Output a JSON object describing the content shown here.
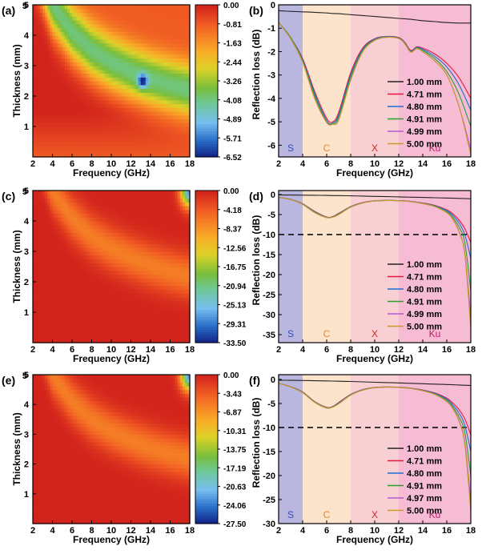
{
  "panels": [
    {
      "label": "(a)",
      "type": "contour",
      "xlabel": "Frequency (GHz)",
      "ylabel": "Thickness (mm)",
      "xticks": [
        "2",
        "4",
        "6",
        "8",
        "10",
        "12",
        "14",
        "16",
        "18"
      ],
      "yticks": [
        "1",
        "2",
        "3",
        "4",
        "5"
      ],
      "colorbar": [
        "0.00",
        "-0.81",
        "-1.63",
        "-2.44",
        "-3.26",
        "-4.08",
        "-4.89",
        "-5.71",
        "-6.52"
      ]
    },
    {
      "label": "(b)",
      "type": "line",
      "xlabel": "Frequency (GHz)",
      "ylabel": "Reflection loss (dB)",
      "xticks": [
        "2",
        "4",
        "6",
        "8",
        "10",
        "12",
        "14",
        "16",
        "18"
      ],
      "yticks": [
        "0",
        "-1",
        "-2",
        "-3",
        "-4",
        "-5",
        "-6"
      ],
      "bands": [
        "S",
        "C",
        "X",
        "Ku"
      ],
      "legend": [
        "1.00 mm",
        "4.71 mm",
        "4.80 mm",
        "4.91 mm",
        "4.99 mm",
        "5.00 mm"
      ]
    },
    {
      "label": "(c)",
      "type": "contour",
      "xlabel": "Frequency (GHz)",
      "ylabel": "Thickness (mm)",
      "xticks": [
        "2",
        "4",
        "6",
        "8",
        "10",
        "12",
        "14",
        "16",
        "18"
      ],
      "yticks": [
        "1",
        "2",
        "3",
        "4",
        "5"
      ],
      "colorbar": [
        "0.00",
        "-4.18",
        "-8.37",
        "-12.56",
        "-16.75",
        "-20.94",
        "-25.13",
        "-29.31",
        "-33.50"
      ]
    },
    {
      "label": "(d)",
      "type": "line",
      "xlabel": "Frequency (GHz)",
      "ylabel": "Reflection loss (dB)",
      "xticks": [
        "2",
        "4",
        "6",
        "8",
        "10",
        "12",
        "14",
        "16",
        "18"
      ],
      "yticks": [
        "0",
        "-5",
        "-10",
        "-15",
        "-20",
        "-25",
        "-30",
        "-35"
      ],
      "bands": [
        "S",
        "C",
        "X",
        "Ku"
      ],
      "legend": [
        "1.00 mm",
        "4.71 mm",
        "4.80 mm",
        "4.91 mm",
        "4.99 mm",
        "5.00 mm"
      ]
    },
    {
      "label": "(e)",
      "type": "contour",
      "xlabel": "Frequency (GHz)",
      "ylabel": "Thickness (mm)",
      "xticks": [
        "2",
        "4",
        "6",
        "8",
        "10",
        "12",
        "14",
        "16",
        "18"
      ],
      "yticks": [
        "1",
        "2",
        "3",
        "4",
        "5"
      ],
      "colorbar": [
        "0.00",
        "-3.43",
        "-6.87",
        "-10.31",
        "-13.75",
        "-17.19",
        "-20.63",
        "-24.06",
        "-27.50"
      ]
    },
    {
      "label": "(f)",
      "type": "line",
      "xlabel": "Frequency (GHz)",
      "ylabel": "Reflection loss (dB)",
      "xticks": [
        "2",
        "4",
        "6",
        "8",
        "10",
        "12",
        "14",
        "16",
        "18"
      ],
      "yticks": [
        "0",
        "-5",
        "-10",
        "-15",
        "-20",
        "-25",
        "-30"
      ],
      "bands": [
        "S",
        "C",
        "X",
        "Ku"
      ],
      "legend": [
        "1.00 mm",
        "4.71 mm",
        "4.80 mm",
        "4.91 mm",
        "4.97 mm",
        "5.00 mm"
      ]
    }
  ],
  "colors": {
    "band_S": "#b9b6e0",
    "band_C": "#fbe3cc",
    "band_X": "#f8cfd2",
    "band_Ku": "#f6bcd4",
    "band_label_S": "#2f4fb5",
    "band_label_C": "#e08a2b",
    "band_label_X": "#d62728",
    "band_label_Ku": "#c2186b",
    "series": [
      "#222222",
      "#e8173c",
      "#1a6fd6",
      "#2ca02c",
      "#b25ad6",
      "#c89a28"
    ]
  },
  "chart_data": [
    {
      "type": "heatmap",
      "panel": "a",
      "x_range": [
        2,
        18
      ],
      "y_range": [
        0,
        5
      ],
      "z_range": [
        -6.52,
        0
      ],
      "features": [
        {
          "x": 13.2,
          "y": 2.5,
          "z": -6.52
        }
      ],
      "ridge": {
        "x": [
          4,
          6,
          8,
          10,
          12,
          14,
          16,
          18
        ],
        "y": [
          5.0,
          4.1,
          3.5,
          3.1,
          2.8,
          2.55,
          2.35,
          2.2
        ]
      }
    },
    {
      "type": "line",
      "panel": "b",
      "xlim": [
        2,
        18
      ],
      "ylim": [
        -6.5,
        0
      ],
      "x": [
        2,
        3,
        4,
        5,
        6,
        6.5,
        7,
        8,
        9,
        10,
        11,
        12,
        12.5,
        13,
        13.5,
        14,
        15,
        16,
        17,
        18
      ],
      "series": [
        {
          "name": "1.00 mm",
          "values": [
            -0.25,
            -0.28,
            -0.3,
            -0.32,
            -0.35,
            -0.37,
            -0.38,
            -0.42,
            -0.46,
            -0.5,
            -0.54,
            -0.58,
            -0.6,
            -0.62,
            -0.65,
            -0.68,
            -0.72,
            -0.76,
            -0.78,
            -0.78
          ]
        },
        {
          "name": "4.71 mm",
          "values": [
            -0.75,
            -1.4,
            -2.3,
            -3.7,
            -4.85,
            -5.0,
            -4.6,
            -2.9,
            -1.85,
            -1.45,
            -1.35,
            -1.4,
            -1.6,
            -1.95,
            -1.8,
            -1.85,
            -2.1,
            -2.5,
            -3.1,
            -4.0
          ]
        },
        {
          "name": "4.80 mm",
          "values": [
            -0.75,
            -1.4,
            -2.35,
            -3.8,
            -4.95,
            -5.05,
            -4.7,
            -3.0,
            -1.9,
            -1.47,
            -1.36,
            -1.42,
            -1.62,
            -1.98,
            -1.82,
            -1.9,
            -2.2,
            -2.65,
            -3.4,
            -4.5
          ]
        },
        {
          "name": "4.91 mm",
          "values": [
            -0.75,
            -1.4,
            -2.4,
            -3.9,
            -5.0,
            -5.08,
            -4.8,
            -3.1,
            -1.95,
            -1.5,
            -1.38,
            -1.43,
            -1.64,
            -2.0,
            -1.85,
            -1.95,
            -2.3,
            -2.85,
            -3.8,
            -5.2
          ]
        },
        {
          "name": "4.99 mm",
          "values": [
            -0.75,
            -1.45,
            -2.45,
            -4.0,
            -5.02,
            -5.1,
            -4.9,
            -3.2,
            -2.0,
            -1.52,
            -1.39,
            -1.44,
            -1.66,
            -2.02,
            -1.87,
            -2.0,
            -2.4,
            -3.0,
            -4.3,
            -6.2
          ]
        },
        {
          "name": "5.00 mm",
          "values": [
            -0.75,
            -1.45,
            -2.45,
            -4.0,
            -5.03,
            -5.1,
            -4.92,
            -3.22,
            -2.01,
            -1.52,
            -1.39,
            -1.44,
            -1.66,
            -2.02,
            -1.87,
            -2.0,
            -2.4,
            -3.0,
            -4.3,
            -6.4
          ]
        }
      ]
    },
    {
      "type": "heatmap",
      "panel": "c",
      "x_range": [
        2,
        18
      ],
      "y_range": [
        0,
        5
      ],
      "z_range": [
        -33.5,
        0
      ],
      "features": [
        {
          "x": 18,
          "y": 5,
          "z": -33.5
        }
      ],
      "ridge": {
        "x": [
          4,
          6,
          8,
          10,
          12,
          14,
          16,
          18
        ],
        "y": [
          5.0,
          4.1,
          3.5,
          3.1,
          2.8,
          2.55,
          2.35,
          2.2
        ]
      }
    },
    {
      "type": "line",
      "panel": "d",
      "xlim": [
        2,
        18
      ],
      "ylim": [
        -37,
        1
      ],
      "threshold": -10,
      "x": [
        2,
        3,
        4,
        5,
        6,
        6.5,
        7,
        8,
        9,
        10,
        11,
        12,
        13,
        14,
        15,
        16,
        16.5,
        17,
        17.5,
        18
      ],
      "series": [
        {
          "name": "1.00 mm",
          "values": [
            -0.1,
            -0.12,
            -0.15,
            -0.18,
            -0.22,
            -0.25,
            -0.27,
            -0.32,
            -0.38,
            -0.45,
            -0.52,
            -0.58,
            -0.65,
            -0.72,
            -0.8,
            -0.88,
            -0.92,
            -0.96,
            -1.0,
            -1.05
          ]
        },
        {
          "name": "4.71 mm",
          "values": [
            -0.7,
            -1.2,
            -2.3,
            -4.2,
            -5.6,
            -5.5,
            -4.7,
            -3.0,
            -2.0,
            -1.55,
            -1.45,
            -1.5,
            -1.7,
            -2.1,
            -2.7,
            -3.8,
            -4.8,
            -6.3,
            -8.5,
            -12.0
          ]
        },
        {
          "name": "4.80 mm",
          "values": [
            -0.7,
            -1.2,
            -2.35,
            -4.3,
            -5.65,
            -5.55,
            -4.8,
            -3.05,
            -2.05,
            -1.57,
            -1.47,
            -1.52,
            -1.72,
            -2.15,
            -2.8,
            -4.0,
            -5.2,
            -7.0,
            -10.0,
            -16.0
          ]
        },
        {
          "name": "4.91 mm",
          "values": [
            -0.7,
            -1.25,
            -2.4,
            -4.4,
            -5.7,
            -5.6,
            -4.9,
            -3.1,
            -2.1,
            -1.6,
            -1.48,
            -1.53,
            -1.74,
            -2.2,
            -2.9,
            -4.3,
            -5.7,
            -8.0,
            -12.0,
            -24.0
          ]
        },
        {
          "name": "4.99 mm",
          "values": [
            -0.7,
            -1.25,
            -2.45,
            -4.5,
            -5.75,
            -5.65,
            -5.0,
            -3.15,
            -2.12,
            -1.62,
            -1.5,
            -1.55,
            -1.76,
            -2.25,
            -3.0,
            -4.5,
            -6.1,
            -9.0,
            -14.5,
            -31.0
          ]
        },
        {
          "name": "5.00 mm",
          "values": [
            -0.7,
            -1.25,
            -2.45,
            -4.5,
            -5.75,
            -5.65,
            -5.0,
            -3.16,
            -2.12,
            -1.62,
            -1.5,
            -1.55,
            -1.77,
            -2.26,
            -3.02,
            -4.55,
            -6.2,
            -9.2,
            -15.0,
            -33.5
          ]
        }
      ]
    },
    {
      "type": "heatmap",
      "panel": "e",
      "x_range": [
        2,
        18
      ],
      "y_range": [
        0,
        5
      ],
      "z_range": [
        -27.5,
        0
      ],
      "features": [
        {
          "x": 18,
          "y": 5,
          "z": -27.5
        }
      ],
      "ridge": {
        "x": [
          4,
          6,
          8,
          10,
          12,
          14,
          16,
          18
        ],
        "y": [
          5.0,
          4.1,
          3.5,
          3.1,
          2.8,
          2.55,
          2.35,
          2.2
        ]
      }
    },
    {
      "type": "line",
      "panel": "f",
      "xlim": [
        2,
        18
      ],
      "ylim": [
        -30,
        1
      ],
      "threshold": -10,
      "x": [
        2,
        3,
        4,
        5,
        6,
        6.5,
        7,
        8,
        9,
        10,
        11,
        12,
        13,
        14,
        15,
        16,
        16.5,
        17,
        17.5,
        18
      ],
      "series": [
        {
          "name": "1.00 mm",
          "values": [
            -0.15,
            -0.18,
            -0.22,
            -0.26,
            -0.3,
            -0.33,
            -0.36,
            -0.42,
            -0.5,
            -0.58,
            -0.65,
            -0.72,
            -0.8,
            -0.88,
            -0.96,
            -1.05,
            -1.1,
            -1.15,
            -1.2,
            -1.25
          ]
        },
        {
          "name": "4.71 mm",
          "values": [
            -0.8,
            -1.5,
            -2.6,
            -4.6,
            -5.8,
            -5.6,
            -4.8,
            -3.1,
            -2.1,
            -1.65,
            -1.55,
            -1.6,
            -1.8,
            -2.2,
            -2.8,
            -3.9,
            -4.9,
            -6.2,
            -8.2,
            -11.5
          ]
        },
        {
          "name": "4.80 mm",
          "values": [
            -0.8,
            -1.5,
            -2.65,
            -4.65,
            -5.85,
            -5.65,
            -4.9,
            -3.15,
            -2.15,
            -1.68,
            -1.57,
            -1.62,
            -1.82,
            -2.25,
            -2.9,
            -4.1,
            -5.3,
            -6.9,
            -9.5,
            -15.0
          ]
        },
        {
          "name": "4.91 mm",
          "values": [
            -0.8,
            -1.55,
            -2.7,
            -4.7,
            -5.9,
            -5.7,
            -5.0,
            -3.2,
            -2.2,
            -1.7,
            -1.58,
            -1.63,
            -1.84,
            -2.3,
            -3.0,
            -4.35,
            -5.7,
            -7.7,
            -11.0,
            -20.0
          ]
        },
        {
          "name": "4.97 mm",
          "values": [
            -0.8,
            -1.55,
            -2.75,
            -4.75,
            -5.95,
            -5.75,
            -5.05,
            -3.25,
            -2.22,
            -1.72,
            -1.6,
            -1.65,
            -1.86,
            -2.35,
            -3.1,
            -4.55,
            -6.0,
            -8.4,
            -13.0,
            -25.5
          ]
        },
        {
          "name": "5.00 mm",
          "values": [
            -0.8,
            -1.55,
            -2.75,
            -4.75,
            -5.95,
            -5.75,
            -5.05,
            -3.26,
            -2.23,
            -1.72,
            -1.6,
            -1.65,
            -1.87,
            -2.36,
            -3.12,
            -4.6,
            -6.1,
            -8.6,
            -13.5,
            -27.5
          ]
        }
      ]
    }
  ]
}
